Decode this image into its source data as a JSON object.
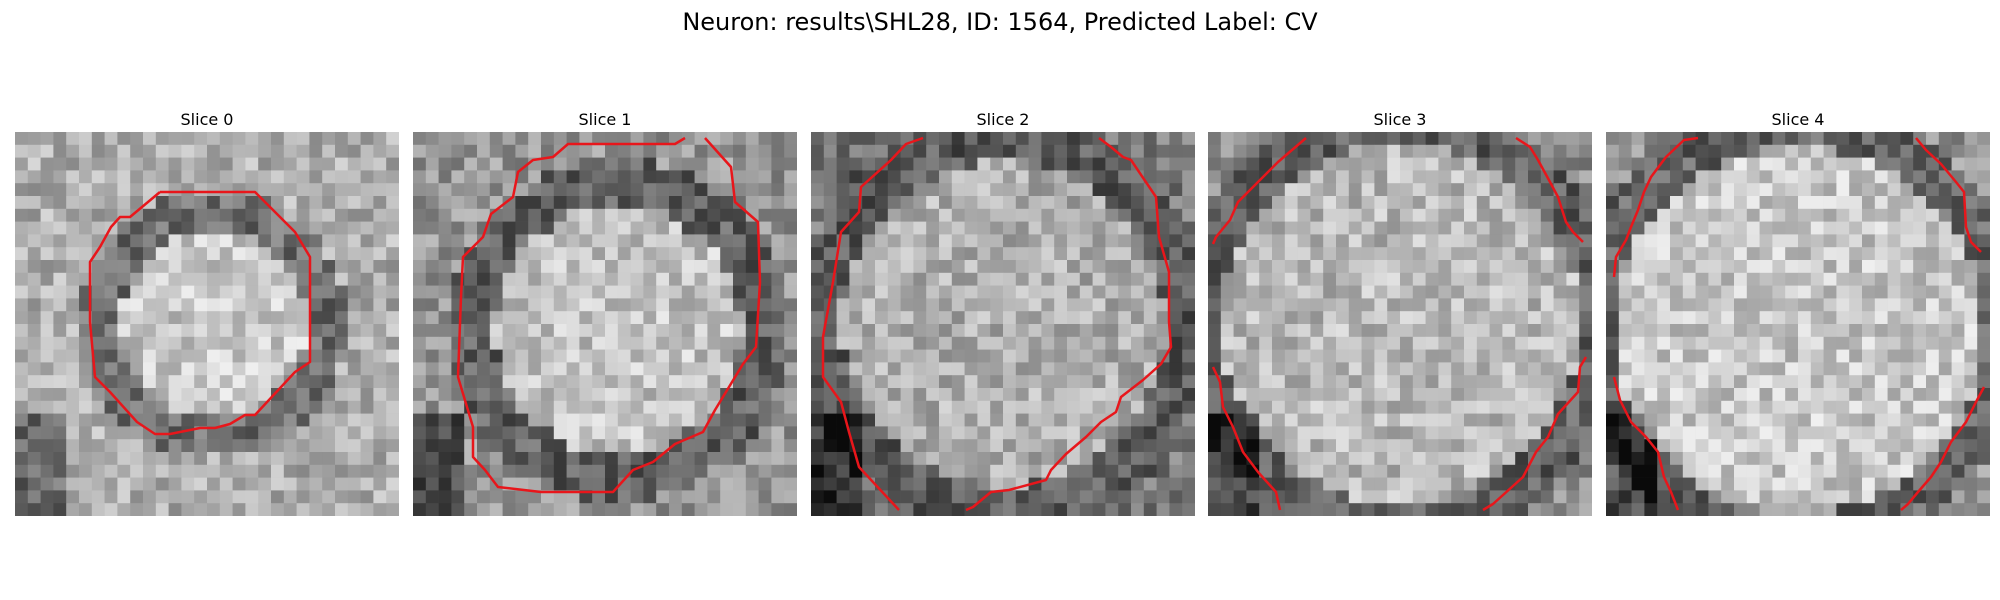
{
  "figure": {
    "title": "Neuron: results\\SHL28, ID: 1564, Predicted Label: CV"
  },
  "panels": [
    {
      "title": "Slice 0"
    },
    {
      "title": "Slice 1"
    },
    {
      "title": "Slice 2"
    },
    {
      "title": "Slice 3"
    },
    {
      "title": "Slice 4"
    }
  ],
  "colors": {
    "contour": "#e8161b",
    "background": "#ffffff"
  }
}
